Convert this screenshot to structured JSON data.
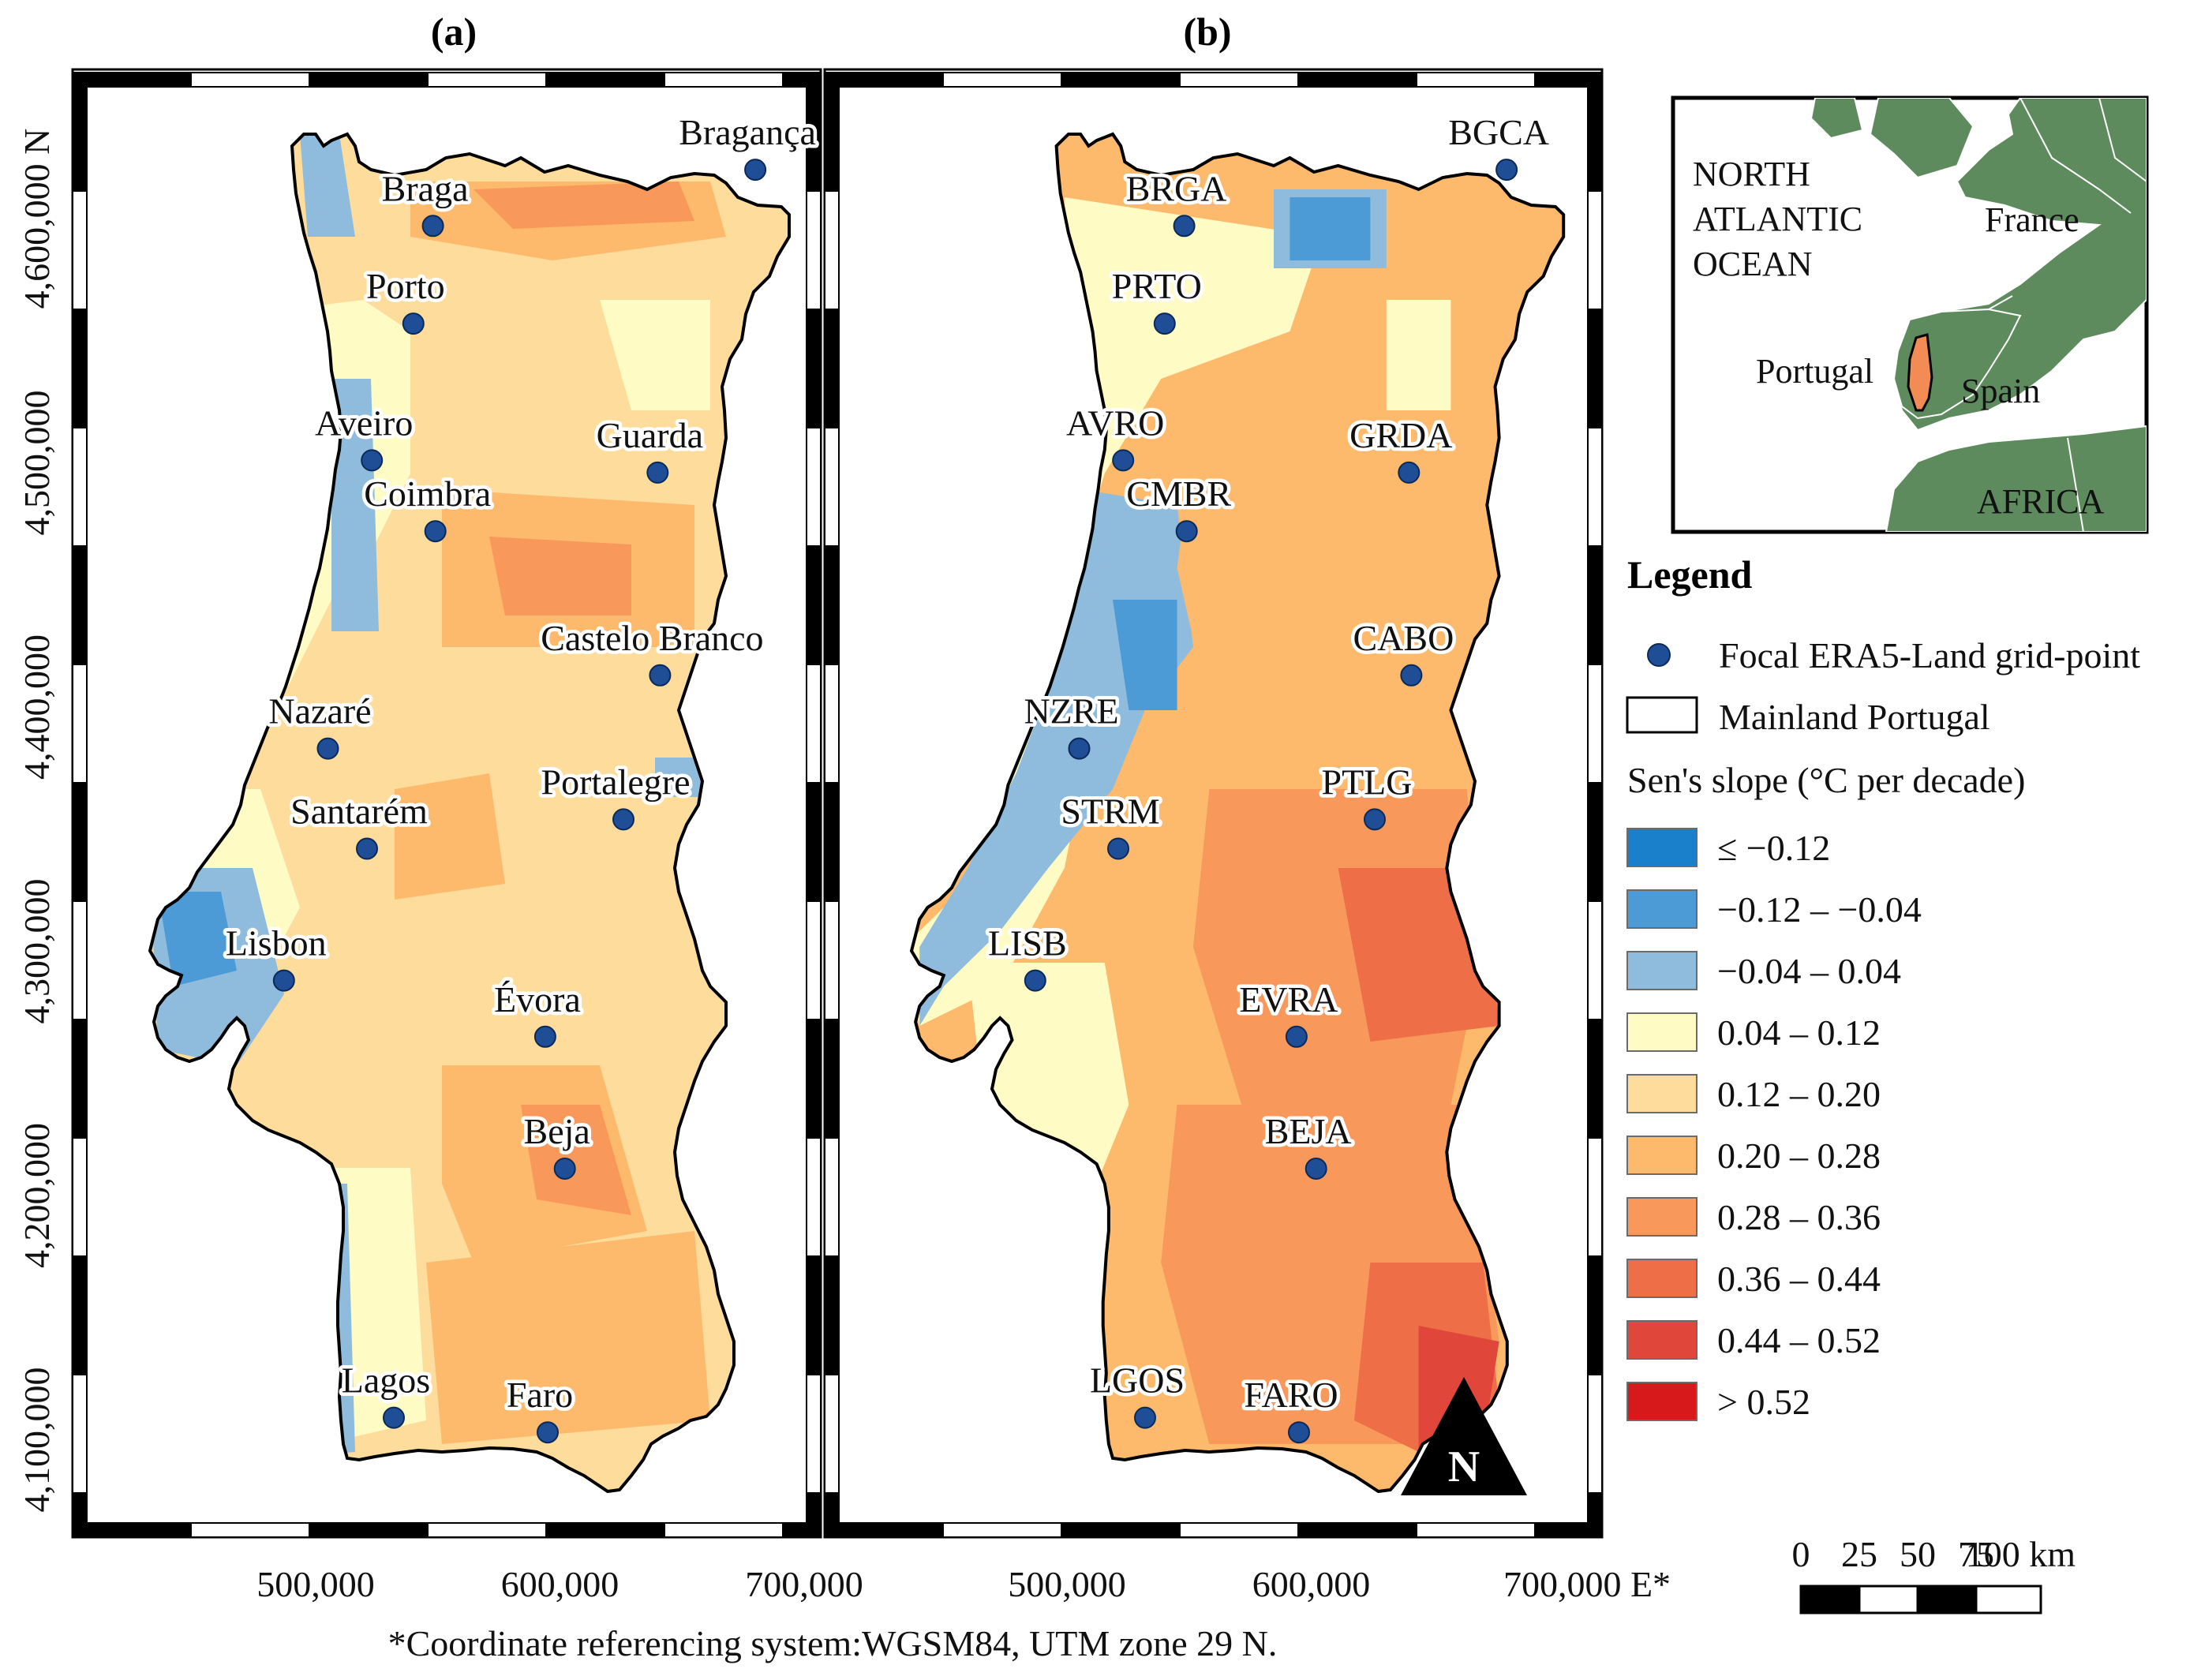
{
  "panels": [
    {
      "letter": "(a)",
      "cities": [
        {
          "name": "Bragança",
          "x": 680000,
          "y": 4620000
        },
        {
          "name": "Braga",
          "x": 548000,
          "y": 4597000
        },
        {
          "name": "Porto",
          "x": 540000,
          "y": 4557000
        },
        {
          "name": "Aveiro",
          "x": 523000,
          "y": 4501000
        },
        {
          "name": "Guarda",
          "x": 640000,
          "y": 4496000
        },
        {
          "name": "Coimbra",
          "x": 549000,
          "y": 4472000
        },
        {
          "name": "Castelo Branco",
          "x": 641000,
          "y": 4413000
        },
        {
          "name": "Nazaré",
          "x": 505000,
          "y": 4383000
        },
        {
          "name": "Portalegre",
          "x": 626000,
          "y": 4354000
        },
        {
          "name": "Santarém",
          "x": 521000,
          "y": 4342000
        },
        {
          "name": "Lisbon",
          "x": 487000,
          "y": 4288000
        },
        {
          "name": "Évora",
          "x": 594000,
          "y": 4265000
        },
        {
          "name": "Beja",
          "x": 602000,
          "y": 4211000
        },
        {
          "name": "Lagos",
          "x": 532000,
          "y": 4109000
        },
        {
          "name": "Faro",
          "x": 595000,
          "y": 4103000
        }
      ]
    },
    {
      "letter": "(b)",
      "cities": [
        {
          "name": "BGCA",
          "x": 680000,
          "y": 4620000
        },
        {
          "name": "BRGA",
          "x": 548000,
          "y": 4597000
        },
        {
          "name": "PRTO",
          "x": 540000,
          "y": 4557000
        },
        {
          "name": "AVRO",
          "x": 523000,
          "y": 4501000
        },
        {
          "name": "GRDA",
          "x": 640000,
          "y": 4496000
        },
        {
          "name": "CMBR",
          "x": 549000,
          "y": 4472000
        },
        {
          "name": "CABO",
          "x": 641000,
          "y": 4413000
        },
        {
          "name": "NZRE",
          "x": 505000,
          "y": 4383000
        },
        {
          "name": "PTLG",
          "x": 626000,
          "y": 4354000
        },
        {
          "name": "STRM",
          "x": 521000,
          "y": 4342000
        },
        {
          "name": "LISB",
          "x": 487000,
          "y": 4288000
        },
        {
          "name": "EVRA",
          "x": 594000,
          "y": 4265000
        },
        {
          "name": "BEJA",
          "x": 602000,
          "y": 4211000
        },
        {
          "name": "LGOS",
          "x": 532000,
          "y": 4109000
        },
        {
          "name": "FARO",
          "x": 595000,
          "y": 4103000
        }
      ]
    }
  ],
  "y_ticks": [
    "4,600,000 N",
    "4,500,000",
    "4,400,000",
    "4,300,000",
    "4,200,000",
    "4,100,000"
  ],
  "x_ticks_a": [
    "500,000",
    "600,000",
    "700,000"
  ],
  "x_ticks_b": [
    "500,000",
    "600,000",
    "700,000 E*"
  ],
  "north_arrow": "N",
  "inset": {
    "ocean_label": [
      "NORTH",
      "ATLANTIC",
      "OCEAN"
    ],
    "france": "France",
    "portugal": "Portugal",
    "spain": "Spain",
    "africa": "AFRICA"
  },
  "legend": {
    "title": "Legend",
    "focal_point": "Focal ERA5-Land grid-point",
    "mainland": "Mainland Portugal",
    "slope_title": "Sen's slope (°C per decade)",
    "classes": [
      {
        "label": "≤ −0.12",
        "color": "#1a80cc"
      },
      {
        "label": "−0.12 – −0.04",
        "color": "#4d9bd6"
      },
      {
        "label": "−0.04 – 0.04",
        "color": "#8fbcdc"
      },
      {
        "label": "0.04 – 0.12",
        "color": "#fefbc4"
      },
      {
        "label": "0.12 – 0.20",
        "color": "#fedc9c"
      },
      {
        "label": "0.20 – 0.28",
        "color": "#fdb96c"
      },
      {
        "label": "0.28 – 0.36",
        "color": "#f8985a"
      },
      {
        "label": "0.36 – 0.44",
        "color": "#ee6f47"
      },
      {
        "label": "0.44 – 0.52",
        "color": "#e0463a"
      },
      {
        "label": "> 0.52",
        "color": "#d7191c"
      }
    ]
  },
  "scale_bar": {
    "labels": [
      "0",
      "25",
      "50",
      "75",
      "100 km"
    ]
  },
  "footnote": "*Coordinate referencing system:WGSM84, UTM zone 29 N.",
  "colors": {
    "point": "#1f4e96",
    "land_inset": "#5e8b5e",
    "border": "#000000"
  }
}
